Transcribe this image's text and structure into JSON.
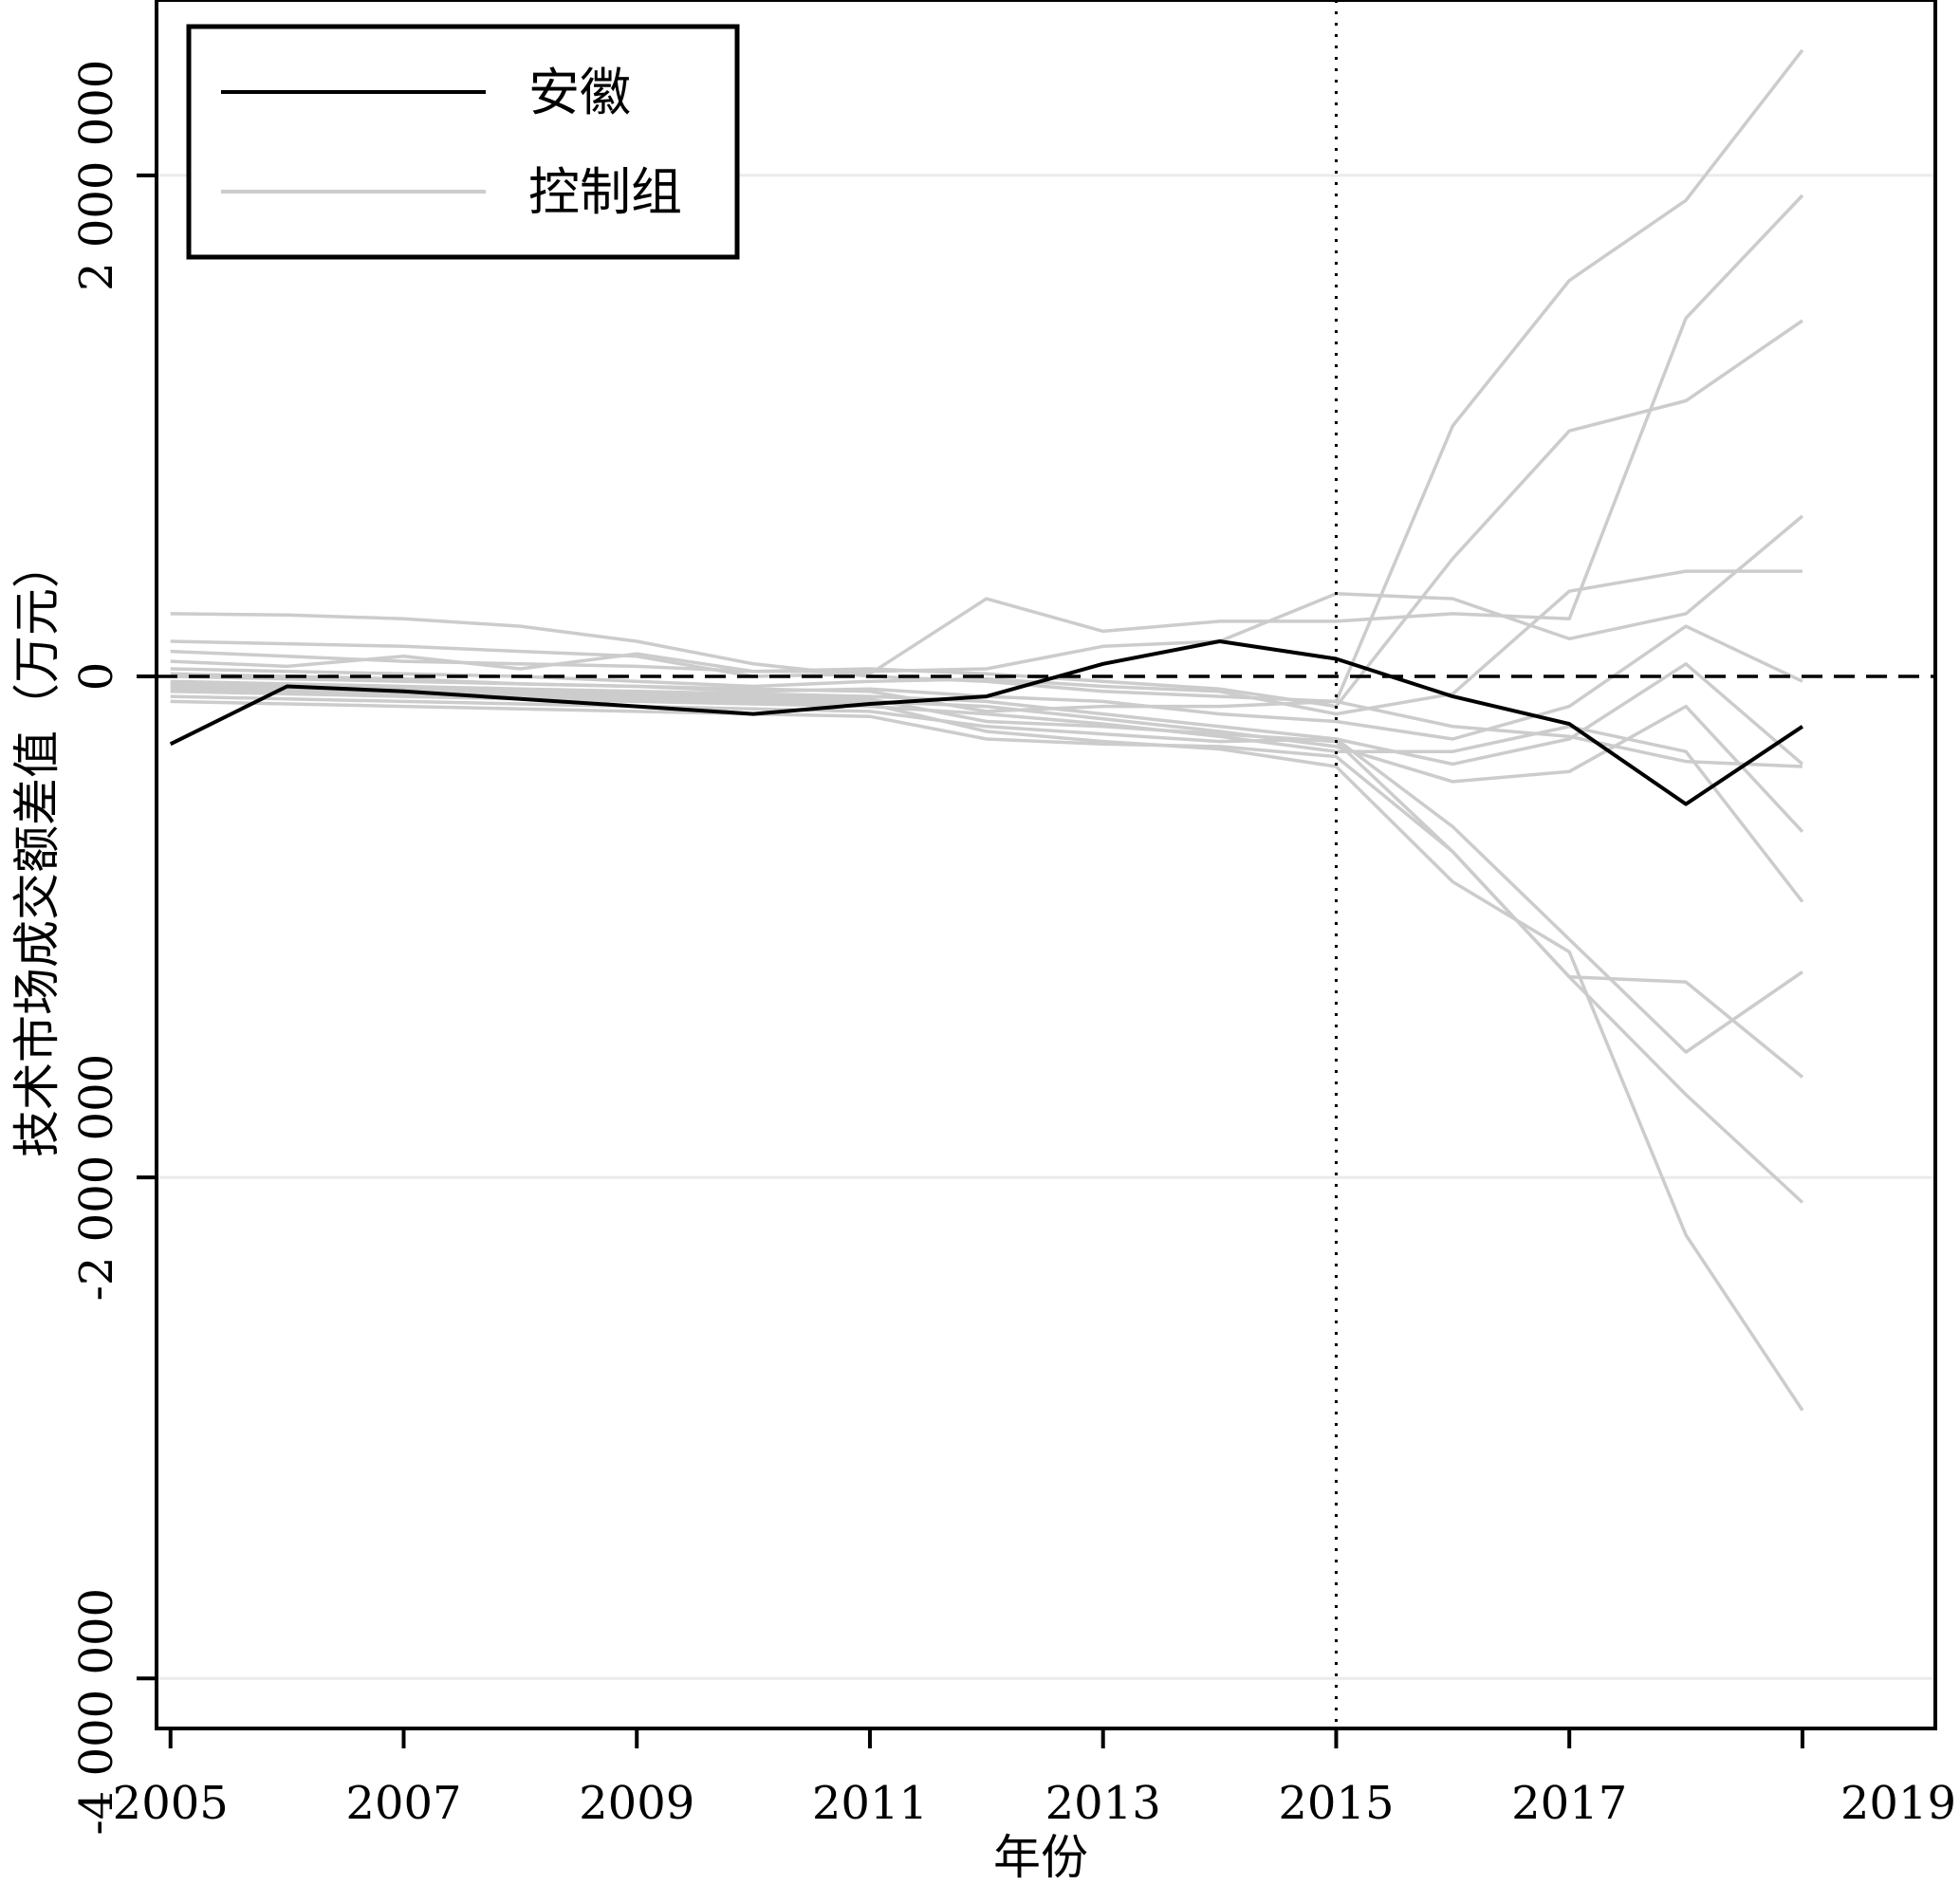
{
  "chart_data": {
    "type": "line",
    "xlabel": "年份",
    "ylabel": "技术市场成交额差值（万元）",
    "xlim": [
      2004.88,
      2020.14
    ],
    "ylim": [
      -4200000,
      2700000
    ],
    "x_ticks": [
      2005,
      2007,
      2009,
      2011,
      2013,
      2015,
      2017,
      2019
    ],
    "y_ticks": [
      {
        "value": -4000000,
        "label": "-4 000 000"
      },
      {
        "value": -2000000,
        "label": "-2 000 000"
      },
      {
        "value": 0,
        "label": "0"
      },
      {
        "value": 2000000,
        "label": "2 000 000"
      }
    ],
    "grid": "horizontal",
    "zero_line": "dashed",
    "treatment_year": 2015,
    "legend": {
      "placement": "top-left",
      "entries": [
        {
          "label": "安徽",
          "color": "#000000"
        },
        {
          "label": "控制组",
          "color": "#cccccc"
        }
      ]
    },
    "x": [
      2005,
      2006,
      2007,
      2008,
      2009,
      2010,
      2011,
      2012,
      2013,
      2014,
      2015,
      2016,
      2017,
      2018,
      2019
    ],
    "treated": {
      "name": "安徽",
      "color": "#000000",
      "values": [
        -270000,
        -40000,
        -60000,
        -90000,
        -120000,
        -150000,
        -110000,
        -80000,
        50000,
        140000,
        70000,
        -80000,
        -190000,
        -510000,
        -200000
      ]
    },
    "controls": {
      "name": "控制组",
      "color": "#cccccc",
      "series": [
        {
          "values": [
            250000,
            245000,
            230000,
            200000,
            140000,
            50000,
            0,
            -20000,
            -60000,
            -80000,
            -100000,
            1000000,
            1580000,
            1900000,
            2500000
          ]
        },
        {
          "values": [
            140000,
            130000,
            120000,
            100000,
            80000,
            0,
            10000,
            310000,
            180000,
            220000,
            220000,
            250000,
            230000,
            1430000,
            1920000
          ]
        },
        {
          "values": [
            100000,
            80000,
            60000,
            50000,
            40000,
            20000,
            30000,
            10000,
            -20000,
            -50000,
            -120000,
            470000,
            980000,
            1100000,
            1420000
          ]
        },
        {
          "values": [
            60000,
            40000,
            80000,
            30000,
            90000,
            20000,
            20000,
            30000,
            120000,
            140000,
            330000,
            310000,
            150000,
            250000,
            640000
          ]
        },
        {
          "values": [
            30000,
            20000,
            10000,
            0,
            -20000,
            -40000,
            -20000,
            -10000,
            -40000,
            -60000,
            -150000,
            -70000,
            340000,
            420000,
            420000
          ]
        },
        {
          "values": [
            10000,
            0,
            -10000,
            -30000,
            -40000,
            -60000,
            -50000,
            -80000,
            -100000,
            -150000,
            -180000,
            -250000,
            -120000,
            200000,
            -20000
          ]
        },
        {
          "values": [
            -20000,
            -30000,
            -40000,
            -50000,
            -60000,
            -70000,
            -80000,
            -100000,
            -150000,
            -200000,
            -250000,
            -350000,
            -250000,
            50000,
            -350000
          ]
        },
        {
          "values": [
            -40000,
            -50000,
            -60000,
            -70000,
            -80000,
            -90000,
            -100000,
            -120000,
            -170000,
            -220000,
            -280000,
            -420000,
            -380000,
            -120000,
            -620000
          ]
        },
        {
          "values": [
            -60000,
            -70000,
            -80000,
            -90000,
            -100000,
            -110000,
            -120000,
            -150000,
            -190000,
            -240000,
            -300000,
            -300000,
            -200000,
            -300000,
            -900000
          ]
        },
        {
          "values": [
            -80000,
            -90000,
            -100000,
            -110000,
            -120000,
            -130000,
            -140000,
            -200000,
            -230000,
            -260000,
            -250000,
            -600000,
            -1050000,
            -1500000,
            -1180000
          ]
        },
        {
          "values": [
            -100000,
            -110000,
            -120000,
            -130000,
            -140000,
            -150000,
            -160000,
            -250000,
            -270000,
            -280000,
            -320000,
            -700000,
            -1200000,
            -1670000,
            -2100000
          ]
        },
        {
          "values": [
            -50000,
            -60000,
            -70000,
            -80000,
            -90000,
            -100000,
            -110000,
            -220000,
            -260000,
            -290000,
            -360000,
            -820000,
            -1100000,
            -2230000,
            -2930000
          ]
        },
        {
          "values": [
            -30000,
            -40000,
            -50000,
            -60000,
            -70000,
            -80000,
            -90000,
            -180000,
            -200000,
            -230000,
            -260000,
            -700000,
            -1200000,
            -1220000,
            -1600000
          ]
        },
        {
          "values": [
            0,
            -10000,
            -20000,
            -30000,
            -40000,
            -50000,
            -60000,
            -140000,
            -120000,
            -120000,
            -100000,
            -200000,
            -240000,
            -340000,
            -360000
          ]
        }
      ]
    }
  }
}
